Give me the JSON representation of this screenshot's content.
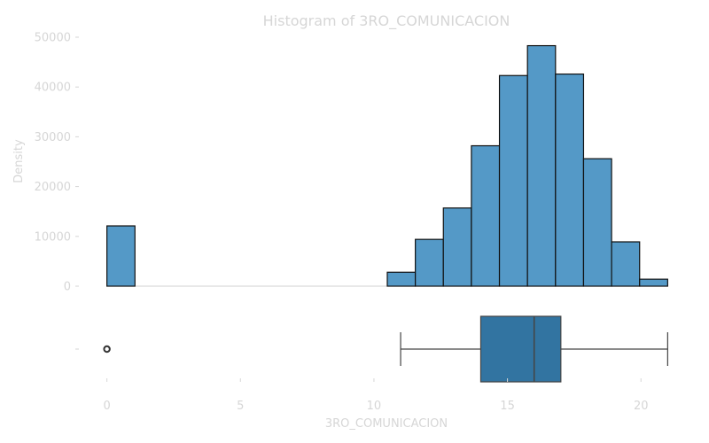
{
  "chart_data": {
    "type": "bar",
    "title": "Histogram of 3RO_COMUNICACION",
    "xlabel": "3RO_COMUNICACION",
    "ylabel": "Density",
    "xlim": [
      -1.05,
      22.05
    ],
    "ylim": [
      0,
      50000
    ],
    "x_ticks": [
      0,
      5,
      10,
      15,
      20
    ],
    "y_ticks": [
      0,
      10000,
      20000,
      30000,
      40000,
      50000
    ],
    "histogram": {
      "bins": [
        {
          "x0": 0.0,
          "x1": 1.05,
          "value": 12100
        },
        {
          "x0": 10.5,
          "x1": 11.55,
          "value": 2800
        },
        {
          "x0": 11.55,
          "x1": 12.6,
          "value": 9400
        },
        {
          "x0": 12.6,
          "x1": 13.65,
          "value": 15700
        },
        {
          "x0": 13.65,
          "x1": 14.7,
          "value": 28200
        },
        {
          "x0": 14.7,
          "x1": 15.75,
          "value": 42300
        },
        {
          "x0": 15.75,
          "x1": 16.8,
          "value": 48300
        },
        {
          "x0": 16.8,
          "x1": 17.85,
          "value": 42600
        },
        {
          "x0": 17.85,
          "x1": 18.9,
          "value": 25600
        },
        {
          "x0": 18.9,
          "x1": 19.95,
          "value": 8900
        },
        {
          "x0": 19.95,
          "x1": 21.0,
          "value": 1400
        }
      ]
    },
    "boxplot": {
      "whisker_low": 11,
      "q1": 14,
      "median": 16,
      "q3": 17,
      "whisker_high": 21,
      "outliers": [
        0
      ]
    },
    "grid": false,
    "legend": "none"
  }
}
